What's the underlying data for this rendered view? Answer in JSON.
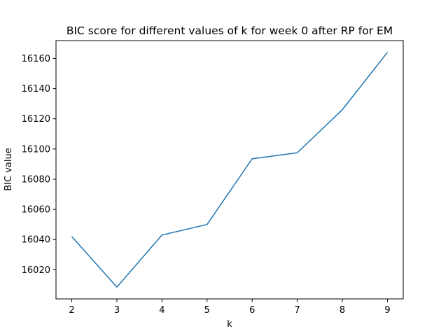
{
  "chart_data": {
    "type": "line",
    "title": "BIC score for different values of k for week 0 after RP for EM",
    "xlabel": "k",
    "ylabel": "BIC value",
    "x": [
      2,
      3,
      4,
      5,
      6,
      7,
      8,
      9
    ],
    "series": [
      {
        "values": [
          16042,
          16008.5,
          16043,
          16050,
          16093.5,
          16097.5,
          16126,
          16164
        ],
        "color": "#1f77b4"
      }
    ],
    "xticks": [
      "2",
      "3",
      "4",
      "5",
      "6",
      "7",
      "8",
      "9"
    ],
    "yticks": [
      "16020",
      "16040",
      "16060",
      "16080",
      "16100",
      "16120",
      "16140",
      "16160"
    ],
    "xlim": [
      1.65,
      9.35
    ],
    "ylim": [
      16000.7,
      16171.8
    ],
    "grid": false,
    "legend": "none"
  }
}
